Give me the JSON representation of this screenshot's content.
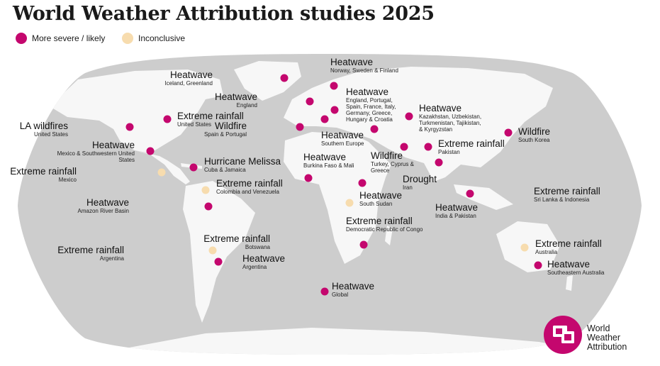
{
  "title": "World Weather Attribution studies 2025",
  "colors": {
    "severe": "#c4076e",
    "inconclusive": "#f7dcae",
    "land": "#f7f7f7",
    "ocean": "#cdcdcd"
  },
  "legend": [
    {
      "label": "More severe / likely",
      "category": "severe"
    },
    {
      "label": "Inconclusive",
      "category": "inconclusive"
    }
  ],
  "studies": [
    {
      "hazard": "Heatwave",
      "location": "Iceland, Greenland",
      "category": "severe"
    },
    {
      "hazard": "Heatwave",
      "location": "Norway, Sweden & Finland",
      "category": "severe"
    },
    {
      "hazard": "Heatwave",
      "location": "England",
      "category": "severe"
    },
    {
      "hazard": "Heatwave",
      "location": "England, Portugal, Spain, France, Italy, Germany, Greece, Hungary & Croatia",
      "category": "severe"
    },
    {
      "hazard": "Heatwave",
      "location": "Kazakhstan, Uzbekistan, Turkmenistan, Tajikistan, & Kyrgyzstan",
      "category": "severe"
    },
    {
      "hazard": "LA wildfires",
      "location": "United States",
      "category": "severe"
    },
    {
      "hazard": "Extreme rainfall",
      "location": "United States",
      "category": "severe"
    },
    {
      "hazard": "Wildfire",
      "location": "Spain & Portugal",
      "category": "severe"
    },
    {
      "hazard": "Heatwave",
      "location": "Southern Europe",
      "category": "severe"
    },
    {
      "hazard": "Wildfire",
      "location": "South Korea",
      "category": "severe"
    },
    {
      "hazard": "Heatwave",
      "location": "Mexico & Southwestern United States",
      "category": "severe"
    },
    {
      "hazard": "Hurricane Melissa",
      "location": "Cuba & Jamaica",
      "category": "severe"
    },
    {
      "hazard": "Extreme rainfall",
      "location": "Mexico",
      "category": "inconclusive"
    },
    {
      "hazard": "Heatwave",
      "location": "Burkina Faso & Mali",
      "category": "severe"
    },
    {
      "hazard": "Wildfire",
      "location": "Turkey, Cyprus & Greece",
      "category": "severe"
    },
    {
      "hazard": "Drought",
      "location": "Iran",
      "category": "severe"
    },
    {
      "hazard": "Extreme rainfall",
      "location": "Pakistan",
      "category": "severe"
    },
    {
      "hazard": "Extreme rainfall",
      "location": "Colombia and Venezuela",
      "category": "inconclusive"
    },
    {
      "hazard": "Heatwave",
      "location": "South Sudan",
      "category": "inconclusive"
    },
    {
      "hazard": "Heatwave",
      "location": "Amazon River Basin",
      "category": "severe"
    },
    {
      "hazard": "Extreme rainfall",
      "location": "Sri Lanka & Indonesia",
      "category": "severe"
    },
    {
      "hazard": "Heatwave",
      "location": "India & Pakistan",
      "category": "severe"
    },
    {
      "hazard": "Extreme rainfall",
      "location": "Democratic Republic of Congo",
      "category": "severe"
    },
    {
      "hazard": "Extreme rainfall",
      "location": "Botswana",
      "category": "severe"
    },
    {
      "hazard": "Extreme rainfall",
      "location": "Argentina",
      "category": "inconclusive"
    },
    {
      "hazard": "Heatwave",
      "location": "Argentina",
      "category": "severe"
    },
    {
      "hazard": "Extreme rainfall",
      "location": "Australia",
      "category": "inconclusive"
    },
    {
      "hazard": "Heatwave",
      "location": "Southeastern Australia",
      "category": "severe"
    },
    {
      "hazard": "Heatwave",
      "location": "Global",
      "category": "severe"
    }
  ],
  "logo": {
    "text": "World\nWeather\nAttribution"
  }
}
